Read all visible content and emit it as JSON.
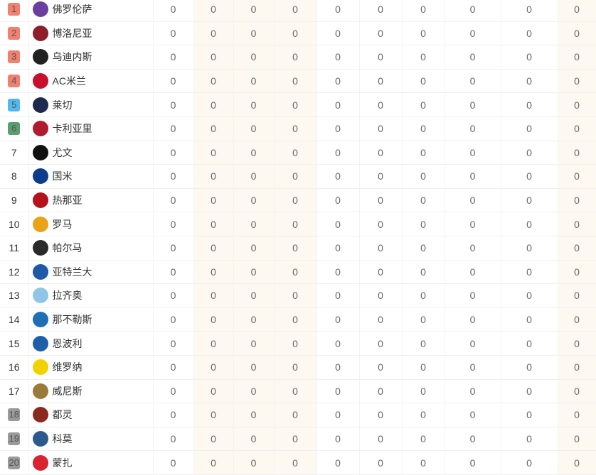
{
  "zone_colors": {
    "champions": "#f2806f",
    "europa": "#52b9ef",
    "conference": "#5a9e6f",
    "relegation": "#9a9a9a"
  },
  "rows": [
    {
      "rank": "1",
      "zone": "champions",
      "team": "佛罗伦萨",
      "logo_color": "#6b3fa0",
      "values": [
        "0",
        "0",
        "0",
        "0",
        "0",
        "0",
        "0",
        "0",
        "0",
        "0"
      ]
    },
    {
      "rank": "2",
      "zone": "champions",
      "team": "博洛尼亚",
      "logo_color": "#8c1f2a",
      "values": [
        "0",
        "0",
        "0",
        "0",
        "0",
        "0",
        "0",
        "0",
        "0",
        "0"
      ]
    },
    {
      "rank": "3",
      "zone": "champions",
      "team": "乌迪内斯",
      "logo_color": "#222222",
      "values": [
        "0",
        "0",
        "0",
        "0",
        "0",
        "0",
        "0",
        "0",
        "0",
        "0"
      ]
    },
    {
      "rank": "4",
      "zone": "champions",
      "team": "AC米兰",
      "logo_color": "#c8102e",
      "values": [
        "0",
        "0",
        "0",
        "0",
        "0",
        "0",
        "0",
        "0",
        "0",
        "0"
      ]
    },
    {
      "rank": "5",
      "zone": "europa",
      "team": "莱切",
      "logo_color": "#1d2a4d",
      "values": [
        "0",
        "0",
        "0",
        "0",
        "0",
        "0",
        "0",
        "0",
        "0",
        "0"
      ]
    },
    {
      "rank": "6",
      "zone": "conference",
      "team": "卡利亚里",
      "logo_color": "#b01c2e",
      "values": [
        "0",
        "0",
        "0",
        "0",
        "0",
        "0",
        "0",
        "0",
        "0",
        "0"
      ]
    },
    {
      "rank": "7",
      "zone": "",
      "team": "尤文",
      "logo_color": "#111111",
      "values": [
        "0",
        "0",
        "0",
        "0",
        "0",
        "0",
        "0",
        "0",
        "0",
        "0"
      ]
    },
    {
      "rank": "8",
      "zone": "",
      "team": "国米",
      "logo_color": "#0d3c8c",
      "values": [
        "0",
        "0",
        "0",
        "0",
        "0",
        "0",
        "0",
        "0",
        "0",
        "0"
      ]
    },
    {
      "rank": "9",
      "zone": "",
      "team": "热那亚",
      "logo_color": "#b5121b",
      "values": [
        "0",
        "0",
        "0",
        "0",
        "0",
        "0",
        "0",
        "0",
        "0",
        "0"
      ]
    },
    {
      "rank": "10",
      "zone": "",
      "team": "罗马",
      "logo_color": "#e8a317",
      "values": [
        "0",
        "0",
        "0",
        "0",
        "0",
        "0",
        "0",
        "0",
        "0",
        "0"
      ]
    },
    {
      "rank": "11",
      "zone": "",
      "team": "帕尔马",
      "logo_color": "#2a2a2a",
      "values": [
        "0",
        "0",
        "0",
        "0",
        "0",
        "0",
        "0",
        "0",
        "0",
        "0"
      ]
    },
    {
      "rank": "12",
      "zone": "",
      "team": "亚特兰大",
      "logo_color": "#1e5aa8",
      "values": [
        "0",
        "0",
        "0",
        "0",
        "0",
        "0",
        "0",
        "0",
        "0",
        "0"
      ]
    },
    {
      "rank": "13",
      "zone": "",
      "team": "拉齐奥",
      "logo_color": "#8fc6e8",
      "values": [
        "0",
        "0",
        "0",
        "0",
        "0",
        "0",
        "0",
        "0",
        "0",
        "0"
      ]
    },
    {
      "rank": "14",
      "zone": "",
      "team": "那不勒斯",
      "logo_color": "#1f6fb5",
      "values": [
        "0",
        "0",
        "0",
        "0",
        "0",
        "0",
        "0",
        "0",
        "0",
        "0"
      ]
    },
    {
      "rank": "15",
      "zone": "",
      "team": "恩波利",
      "logo_color": "#1f5fa8",
      "values": [
        "0",
        "0",
        "0",
        "0",
        "0",
        "0",
        "0",
        "0",
        "0",
        "0"
      ]
    },
    {
      "rank": "16",
      "zone": "",
      "team": "维罗纳",
      "logo_color": "#f2d100",
      "values": [
        "0",
        "0",
        "0",
        "0",
        "0",
        "0",
        "0",
        "0",
        "0",
        "0"
      ]
    },
    {
      "rank": "17",
      "zone": "",
      "team": "威尼斯",
      "logo_color": "#9a7b3a",
      "values": [
        "0",
        "0",
        "0",
        "0",
        "0",
        "0",
        "0",
        "0",
        "0",
        "0"
      ]
    },
    {
      "rank": "18",
      "zone": "relegation",
      "team": "都灵",
      "logo_color": "#8b2a1e",
      "values": [
        "0",
        "0",
        "0",
        "0",
        "0",
        "0",
        "0",
        "0",
        "0",
        "0"
      ]
    },
    {
      "rank": "19",
      "zone": "relegation",
      "team": "科莫",
      "logo_color": "#2c5a8c",
      "values": [
        "0",
        "0",
        "0",
        "0",
        "0",
        "0",
        "0",
        "0",
        "0",
        "0"
      ]
    },
    {
      "rank": "20",
      "zone": "relegation",
      "team": "蒙扎",
      "logo_color": "#d9232e",
      "values": [
        "0",
        "0",
        "0",
        "0",
        "0",
        "0",
        "0",
        "0",
        "0",
        "0"
      ]
    }
  ]
}
